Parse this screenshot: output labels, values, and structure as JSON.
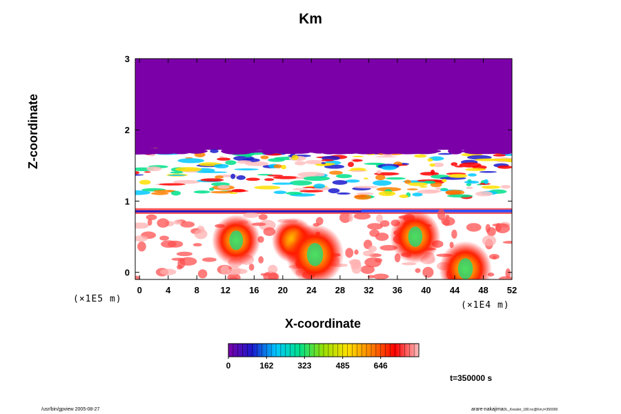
{
  "chart_data": {
    "type": "heatmap",
    "title": "Km",
    "xlabel": "X-coordinate",
    "ylabel": "Z-coordinate",
    "xlim": [
      -0.6,
      52.0
    ],
    "ylim": [
      -0.1,
      3.0
    ],
    "x_ticks": [
      0,
      4,
      8,
      12,
      16,
      20,
      24,
      28,
      32,
      36,
      40,
      44,
      48,
      52
    ],
    "y_ticks": [
      0,
      1,
      2,
      3
    ],
    "x_scale_note": "(×1E4 m)",
    "y_scale_note": "(×1E5 m)",
    "colorbar": {
      "ticks": [
        "0",
        "162",
        "323",
        "485",
        "646"
      ],
      "min": 0,
      "max": 808,
      "colors": [
        "#7b00a8",
        "#1a1acc",
        "#00c8ff",
        "#00e08a",
        "#9ae000",
        "#ffe000",
        "#ff8000",
        "#ff0000",
        "#ffc0c0"
      ]
    },
    "fields": {
      "upper_uniform_region": {
        "z_from": 1.72,
        "z_to": 3.0,
        "value": 0
      },
      "turbulent_band": {
        "z_from": 1.05,
        "z_to": 1.72
      },
      "stable_layer": {
        "z_from": 0.82,
        "z_to": 0.9
      },
      "lower_convective_region": {
        "z_from": -0.1,
        "z_to": 0.82
      }
    },
    "plumes": [
      {
        "x": 13.5,
        "z": 0.45,
        "peak": 520
      },
      {
        "x": 21.5,
        "z": 0.45,
        "peak": 420
      },
      {
        "x": 24.5,
        "z": 0.25,
        "peak": 700
      },
      {
        "x": 38.5,
        "z": 0.5,
        "peak": 560
      },
      {
        "x": 45.5,
        "z": 0.05,
        "peak": 600
      }
    ]
  },
  "annotations": {
    "time": "t=350000 s",
    "footer_left": "/usr/bin/gpview 2005-08-27",
    "footer_right_main": "arare-nakajima",
    "footer_right_small": "DL_Kessler_180.nc@Km,t=350000"
  }
}
